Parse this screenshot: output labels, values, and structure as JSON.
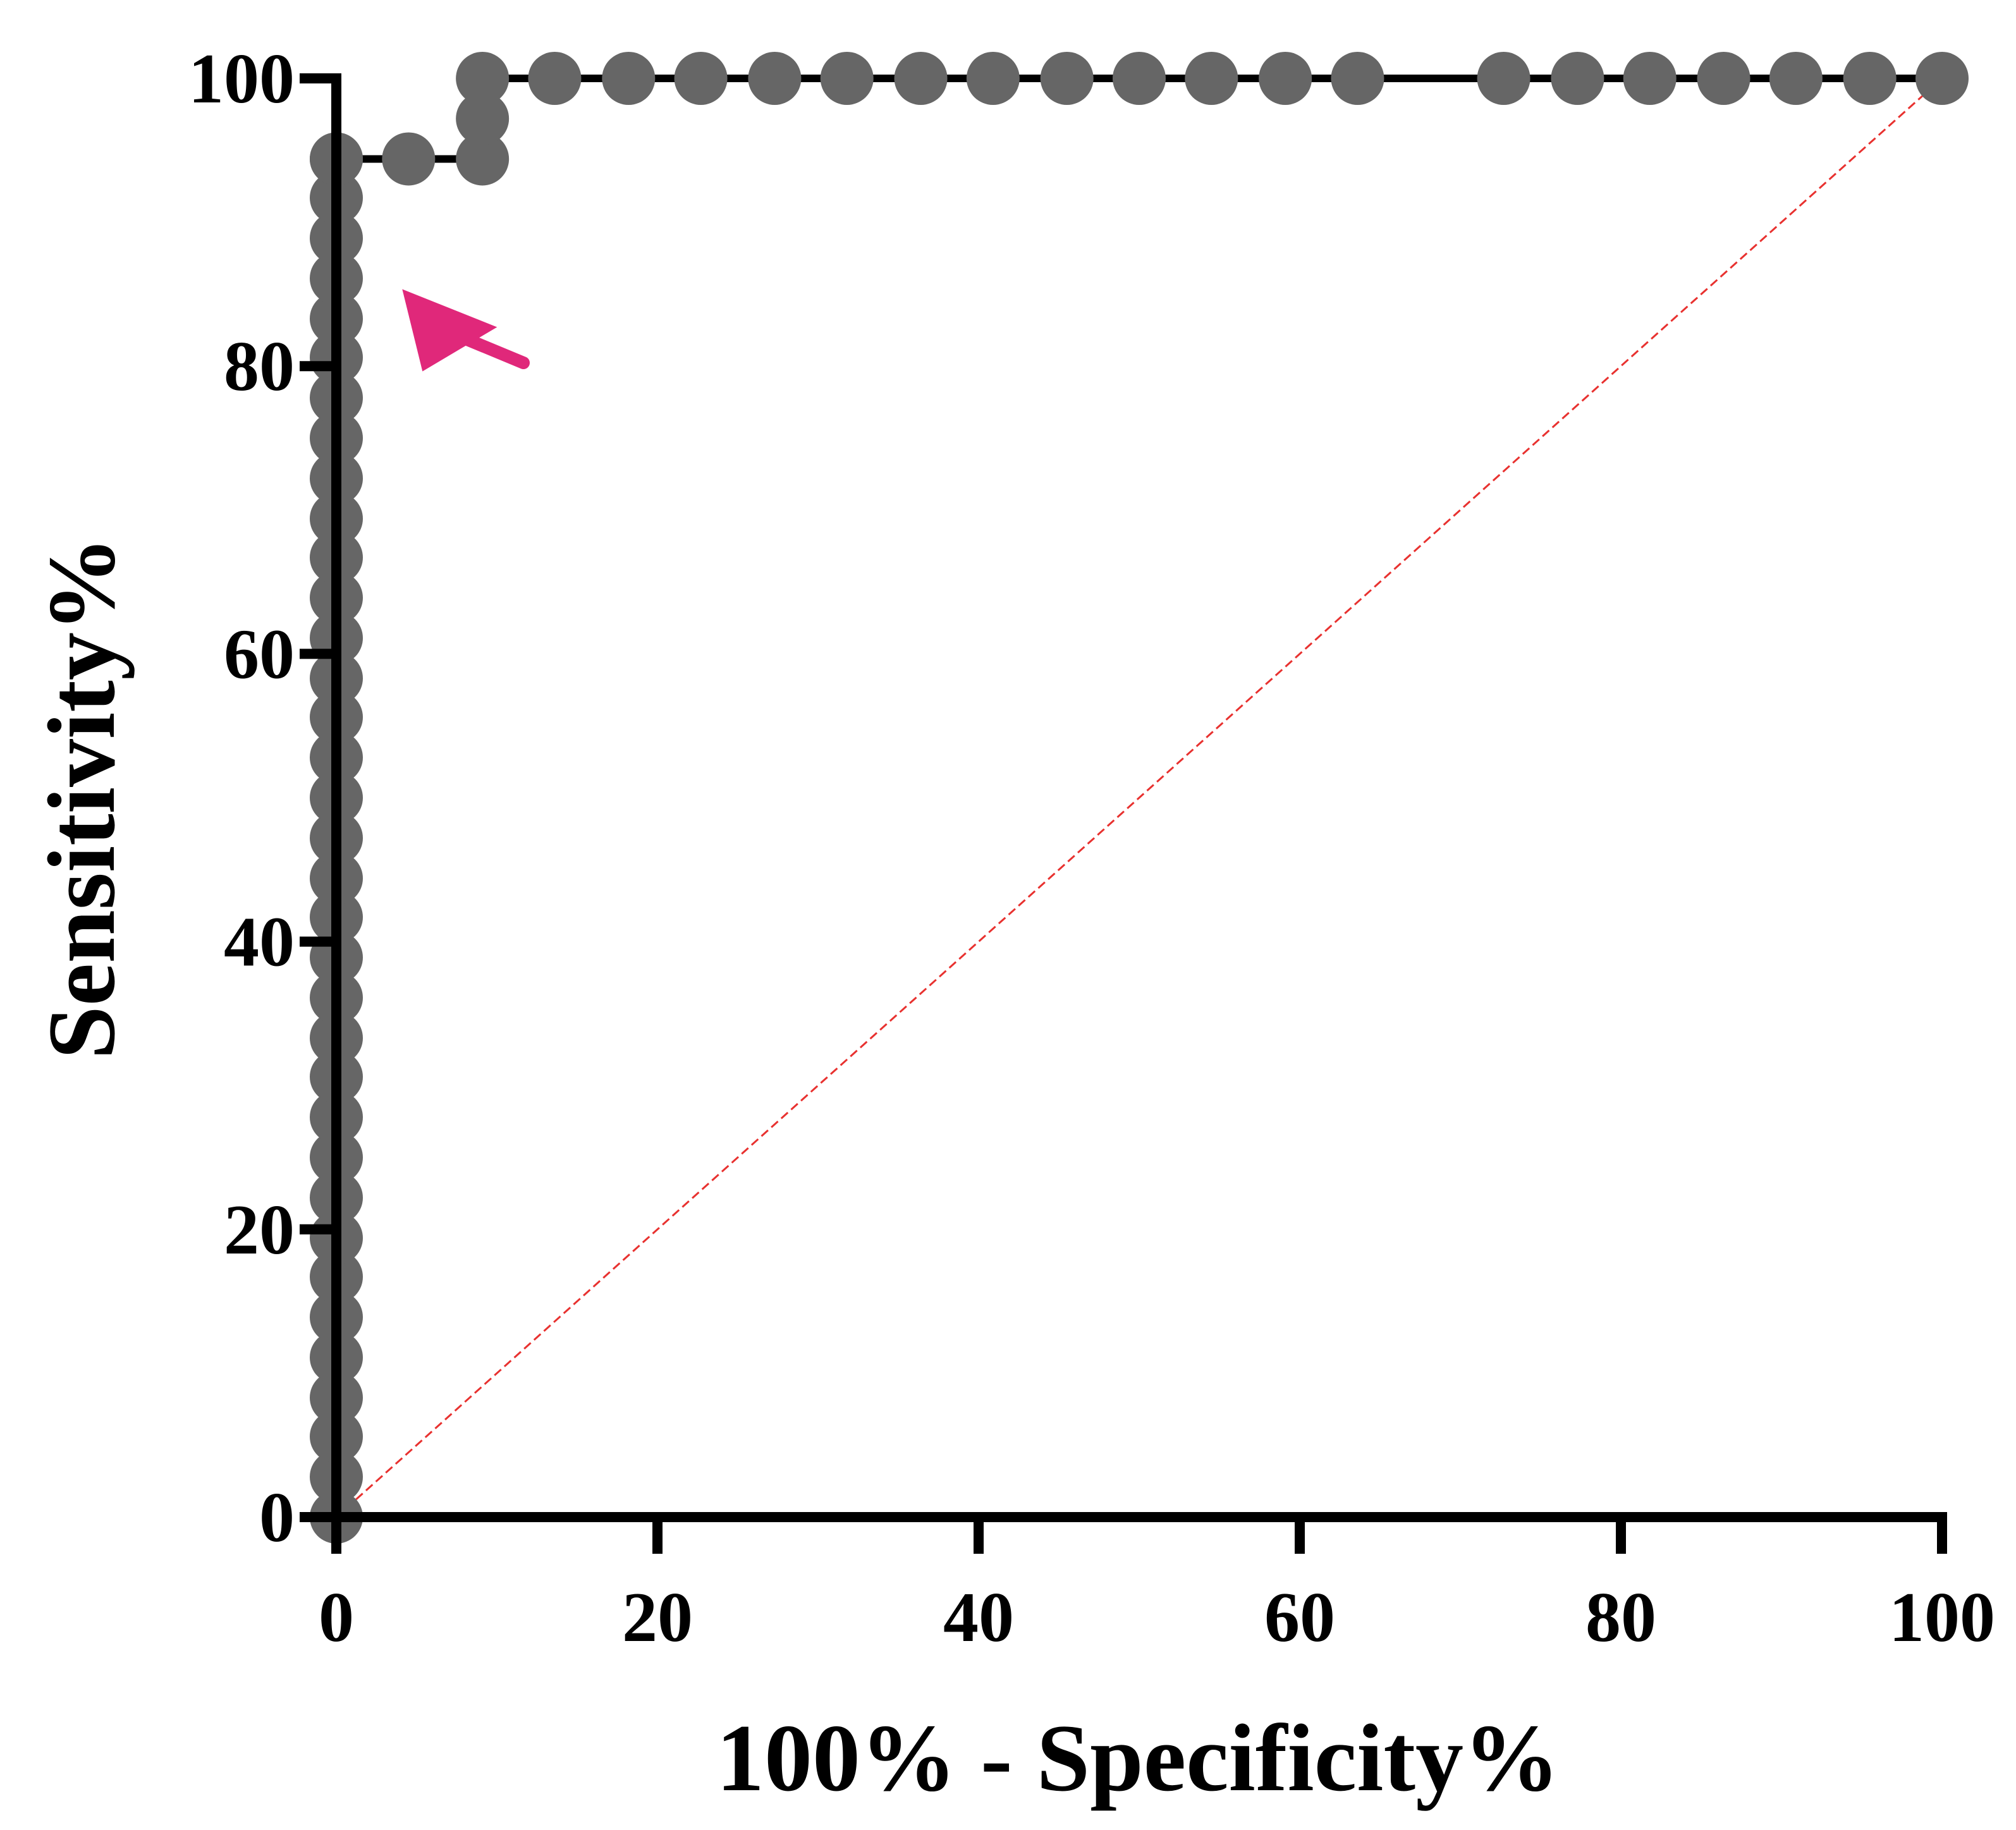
{
  "chart_data": {
    "type": "line",
    "title": "",
    "xlabel": "100% - Specificity%",
    "ylabel": "Sensitivity%",
    "xlim": [
      0,
      100
    ],
    "ylim": [
      0,
      100
    ],
    "xticks": [
      "0",
      "20",
      "40",
      "60",
      "80",
      "100"
    ],
    "yticks": [
      "0",
      "20",
      "40",
      "60",
      "80",
      "100"
    ],
    "grid": false,
    "legend": "none",
    "colors": {
      "curve": "#000000",
      "points": "#666666",
      "reference_line": "#e8312f",
      "annotation_arrow": "#e0287a"
    },
    "series": [
      {
        "x": [
          0,
          0,
          0,
          0,
          0,
          0,
          0,
          0,
          0,
          0,
          0,
          0,
          0,
          0,
          0,
          0,
          0,
          0,
          0,
          0,
          0,
          0,
          0,
          0,
          0,
          0,
          0,
          0,
          0,
          0,
          0,
          0,
          0,
          0,
          0,
          0,
          4.5,
          9.1,
          9.1,
          9.1,
          13.6,
          18.2,
          22.7,
          27.3,
          31.8,
          36.4,
          40.9,
          45.5,
          50.0,
          54.5,
          59.1,
          63.6,
          72.7,
          77.3,
          81.8,
          86.4,
          90.9,
          95.5,
          100
        ],
        "y": [
          0,
          2.8,
          5.6,
          8.3,
          11.1,
          13.9,
          16.7,
          19.4,
          22.2,
          25.0,
          27.8,
          30.6,
          33.3,
          36.1,
          38.9,
          41.7,
          44.4,
          47.2,
          50.0,
          52.8,
          55.6,
          58.3,
          61.1,
          63.9,
          66.7,
          69.4,
          72.2,
          75.0,
          77.8,
          80.6,
          83.3,
          86.1,
          88.9,
          91.7,
          94.4,
          94.4,
          94.4,
          94.4,
          97.2,
          100,
          100,
          100,
          100,
          100,
          100,
          100,
          100,
          100,
          100,
          100,
          100,
          100,
          100,
          100,
          100,
          100,
          100,
          100,
          100
        ]
      }
    ],
    "reference_line": {
      "x": [
        0,
        100
      ],
      "y": [
        0,
        100
      ]
    },
    "annotations": [
      {
        "type": "arrow",
        "points_to": {
          "x": 4.5,
          "y": 94.4
        }
      }
    ]
  }
}
